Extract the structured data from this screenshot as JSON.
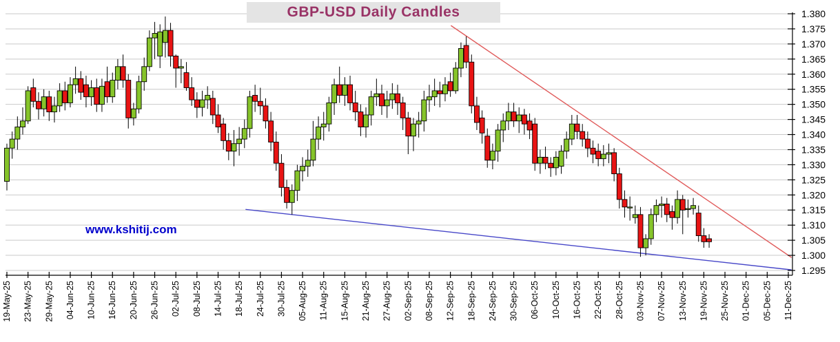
{
  "title": "GBP-USD Daily Candles",
  "watermark": "www.kshitij.com",
  "colors": {
    "up_candle": "#86c42a",
    "down_candle": "#e81414",
    "candle_border": "#000000",
    "wick": "#000000",
    "grid": "#c9c9c9",
    "axis": "#000000",
    "title_text": "#993366",
    "title_bg": "#e4e4e4",
    "watermark_text": "#0000cc",
    "resistance_line": "#e05a5a",
    "support_line": "#4646c8"
  },
  "chart_data": {
    "type": "candlestick",
    "title": "GBP-USD Daily Candles",
    "instrument": "GBP-USD",
    "timeframe": "Daily",
    "start_date": "19-May-25",
    "x_labels": [
      "19-May-25",
      "23-May-25",
      "29-May-25",
      "04-Jun-25",
      "10-Jun-25",
      "16-Jun-25",
      "20-Jun-25",
      "26-Jun-25",
      "02-Jul-25",
      "08-Jul-25",
      "14-Jul-25",
      "18-Jul-25",
      "24-Jul-25",
      "30-Jul-25",
      "05-Aug-25",
      "11-Aug-25",
      "15-Aug-25",
      "21-Aug-25",
      "27-Aug-25",
      "02-Sep-25",
      "08-Sep-25",
      "12-Sep-25",
      "18-Sep-25",
      "24-Sep-25",
      "30-Sep-25",
      "06-Oct-25",
      "10-Oct-25",
      "16-Oct-25",
      "22-Oct-25",
      "28-Oct-25",
      "03-Nov-25",
      "07-Nov-25",
      "13-Nov-25",
      "19-Nov-25",
      "25-Nov-25",
      "01-Dec-25",
      "05-Dec-25",
      "11-Dec-25"
    ],
    "label_interval": 4,
    "y_ticks": [
      1.38,
      1.375,
      1.37,
      1.365,
      1.36,
      1.355,
      1.35,
      1.345,
      1.34,
      1.335,
      1.33,
      1.325,
      1.32,
      1.315,
      1.31,
      1.305,
      1.3,
      1.295
    ],
    "ylim": [
      1.295,
      1.38
    ],
    "grid": true,
    "legend": false,
    "candles_ohlc": [
      [
        1.3245,
        1.337,
        1.3215,
        1.3355
      ],
      [
        1.3355,
        1.341,
        1.332,
        1.3385
      ],
      [
        1.3385,
        1.346,
        1.335,
        1.3425
      ],
      [
        1.3425,
        1.349,
        1.34,
        1.3445
      ],
      [
        1.3445,
        1.356,
        1.3435,
        1.3545
      ],
      [
        1.3555,
        1.3585,
        1.349,
        1.351
      ],
      [
        1.351,
        1.354,
        1.345,
        1.3485
      ],
      [
        1.3485,
        1.355,
        1.346,
        1.3525
      ],
      [
        1.3525,
        1.3545,
        1.3445,
        1.3475
      ],
      [
        1.3475,
        1.3525,
        1.344,
        1.3495
      ],
      [
        1.3495,
        1.357,
        1.3475,
        1.3545
      ],
      [
        1.3545,
        1.3575,
        1.348,
        1.3505
      ],
      [
        1.3505,
        1.359,
        1.349,
        1.3565
      ],
      [
        1.3565,
        1.3625,
        1.3535,
        1.3585
      ],
      [
        1.3585,
        1.361,
        1.3515,
        1.354
      ],
      [
        1.3565,
        1.3595,
        1.349,
        1.3525
      ],
      [
        1.3525,
        1.358,
        1.3495,
        1.3555
      ],
      [
        1.3555,
        1.3585,
        1.3475,
        1.35
      ],
      [
        1.35,
        1.3585,
        1.3475,
        1.356
      ],
      [
        1.3575,
        1.3625,
        1.3505,
        1.3525
      ],
      [
        1.3525,
        1.3605,
        1.3505,
        1.358
      ],
      [
        1.358,
        1.365,
        1.355,
        1.3625
      ],
      [
        1.3625,
        1.3665,
        1.3555,
        1.358
      ],
      [
        1.358,
        1.36,
        1.342,
        1.3455
      ],
      [
        1.3455,
        1.3505,
        1.343,
        1.3485
      ],
      [
        1.3485,
        1.3595,
        1.347,
        1.3575
      ],
      [
        1.3575,
        1.3655,
        1.3545,
        1.3625
      ],
      [
        1.3625,
        1.3745,
        1.361,
        1.372
      ],
      [
        1.372,
        1.3773,
        1.365,
        1.3735
      ],
      [
        1.366,
        1.3765,
        1.362,
        1.374
      ],
      [
        1.3705,
        1.3791,
        1.3655,
        1.3745
      ],
      [
        1.3745,
        1.377,
        1.3625,
        1.366
      ],
      [
        1.366,
        1.3665,
        1.3555,
        1.362
      ],
      [
        1.362,
        1.365,
        1.357,
        1.3625
      ],
      [
        1.3605,
        1.364,
        1.3545,
        1.3555
      ],
      [
        1.3555,
        1.359,
        1.3495,
        1.3515
      ],
      [
        1.3515,
        1.354,
        1.3455,
        1.349
      ],
      [
        1.349,
        1.3545,
        1.346,
        1.3515
      ],
      [
        1.3515,
        1.356,
        1.3485,
        1.353
      ],
      [
        1.352,
        1.3545,
        1.3435,
        1.3465
      ],
      [
        1.3465,
        1.35,
        1.3405,
        1.3425
      ],
      [
        1.3435,
        1.3455,
        1.335,
        1.338
      ],
      [
        1.338,
        1.3405,
        1.3315,
        1.3345
      ],
      [
        1.3345,
        1.3415,
        1.3295,
        1.337
      ],
      [
        1.337,
        1.3425,
        1.333,
        1.3385
      ],
      [
        1.3385,
        1.345,
        1.3355,
        1.342
      ],
      [
        1.342,
        1.3545,
        1.339,
        1.3525
      ],
      [
        1.353,
        1.3565,
        1.3475,
        1.351
      ],
      [
        1.351,
        1.3555,
        1.3465,
        1.3495
      ],
      [
        1.3495,
        1.352,
        1.342,
        1.3445
      ],
      [
        1.3445,
        1.3475,
        1.3345,
        1.3375
      ],
      [
        1.3375,
        1.341,
        1.328,
        1.3305
      ],
      [
        1.3305,
        1.3335,
        1.3195,
        1.3225
      ],
      [
        1.3225,
        1.325,
        1.3155,
        1.3175
      ],
      [
        1.3175,
        1.3235,
        1.3135,
        1.3215
      ],
      [
        1.3215,
        1.33,
        1.318,
        1.328
      ],
      [
        1.328,
        1.3325,
        1.3245,
        1.3295
      ],
      [
        1.3295,
        1.335,
        1.326,
        1.3315
      ],
      [
        1.3315,
        1.3445,
        1.3295,
        1.3385
      ],
      [
        1.3385,
        1.346,
        1.335,
        1.3425
      ],
      [
        1.3425,
        1.3475,
        1.338,
        1.3435
      ],
      [
        1.3435,
        1.3525,
        1.341,
        1.3505
      ],
      [
        1.3505,
        1.3585,
        1.3465,
        1.3565
      ],
      [
        1.3565,
        1.3625,
        1.3505,
        1.353
      ],
      [
        1.353,
        1.359,
        1.3495,
        1.3565
      ],
      [
        1.3565,
        1.3595,
        1.348,
        1.3505
      ],
      [
        1.3505,
        1.3545,
        1.3445,
        1.3475
      ],
      [
        1.3475,
        1.35,
        1.3395,
        1.3425
      ],
      [
        1.3425,
        1.349,
        1.339,
        1.3465
      ],
      [
        1.3465,
        1.3545,
        1.343,
        1.3525
      ],
      [
        1.3525,
        1.3585,
        1.3495,
        1.3535
      ],
      [
        1.3535,
        1.3565,
        1.3465,
        1.3495
      ],
      [
        1.3495,
        1.3545,
        1.3455,
        1.3515
      ],
      [
        1.3515,
        1.357,
        1.3485,
        1.3535
      ],
      [
        1.3535,
        1.3565,
        1.3465,
        1.3505
      ],
      [
        1.3505,
        1.3525,
        1.3415,
        1.3455
      ],
      [
        1.3455,
        1.3475,
        1.3335,
        1.3395
      ],
      [
        1.3395,
        1.3455,
        1.3345,
        1.3435
      ],
      [
        1.3435,
        1.3475,
        1.339,
        1.3445
      ],
      [
        1.3445,
        1.3545,
        1.341,
        1.3515
      ],
      [
        1.3515,
        1.3565,
        1.3475,
        1.3525
      ],
      [
        1.3525,
        1.3585,
        1.3495,
        1.3545
      ],
      [
        1.3545,
        1.3575,
        1.349,
        1.3535
      ],
      [
        1.3535,
        1.359,
        1.351,
        1.3565
      ],
      [
        1.3575,
        1.3605,
        1.3525,
        1.3545
      ],
      [
        1.3545,
        1.364,
        1.3535,
        1.362
      ],
      [
        1.362,
        1.3705,
        1.359,
        1.3685
      ],
      [
        1.3695,
        1.3725,
        1.362,
        1.364
      ],
      [
        1.364,
        1.3665,
        1.347,
        1.3495
      ],
      [
        1.3495,
        1.3525,
        1.3415,
        1.344
      ],
      [
        1.3455,
        1.348,
        1.337,
        1.3405
      ],
      [
        1.3395,
        1.342,
        1.329,
        1.3315
      ],
      [
        1.3315,
        1.337,
        1.3285,
        1.3345
      ],
      [
        1.3345,
        1.3435,
        1.331,
        1.3415
      ],
      [
        1.3415,
        1.347,
        1.3375,
        1.3445
      ],
      [
        1.3445,
        1.3505,
        1.3415,
        1.3475
      ],
      [
        1.3475,
        1.3505,
        1.3425,
        1.3445
      ],
      [
        1.3445,
        1.349,
        1.3405,
        1.3465
      ],
      [
        1.3465,
        1.3485,
        1.34,
        1.3435
      ],
      [
        1.3445,
        1.347,
        1.3385,
        1.3415
      ],
      [
        1.3435,
        1.3455,
        1.328,
        1.3305
      ],
      [
        1.3305,
        1.335,
        1.327,
        1.3325
      ],
      [
        1.3325,
        1.336,
        1.3285,
        1.3305
      ],
      [
        1.3305,
        1.3325,
        1.326,
        1.329
      ],
      [
        1.329,
        1.3345,
        1.3265,
        1.3325
      ],
      [
        1.3295,
        1.3365,
        1.327,
        1.3345
      ],
      [
        1.3345,
        1.341,
        1.332,
        1.3385
      ],
      [
        1.3385,
        1.3465,
        1.3365,
        1.3435
      ],
      [
        1.3435,
        1.3465,
        1.3385,
        1.341
      ],
      [
        1.341,
        1.3435,
        1.336,
        1.3385
      ],
      [
        1.3385,
        1.341,
        1.3325,
        1.3355
      ],
      [
        1.3355,
        1.338,
        1.3305,
        1.3335
      ],
      [
        1.3345,
        1.337,
        1.3295,
        1.332
      ],
      [
        1.332,
        1.3365,
        1.3295,
        1.3335
      ],
      [
        1.3335,
        1.337,
        1.3305,
        1.334
      ],
      [
        1.334,
        1.3355,
        1.3245,
        1.327
      ],
      [
        1.327,
        1.329,
        1.3155,
        1.3185
      ],
      [
        1.3185,
        1.3215,
        1.3125,
        1.316
      ],
      [
        1.316,
        1.3195,
        1.3115,
        1.316
      ],
      [
        1.3125,
        1.3165,
        1.3105,
        1.3135
      ],
      [
        1.3135,
        1.316,
        1.2995,
        1.3025
      ],
      [
        1.3025,
        1.307,
        1.3,
        1.3055
      ],
      [
        1.3055,
        1.3155,
        1.3035,
        1.3135
      ],
      [
        1.3135,
        1.3185,
        1.311,
        1.3165
      ],
      [
        1.3165,
        1.3195,
        1.3125,
        1.317
      ],
      [
        1.317,
        1.319,
        1.311,
        1.3135
      ],
      [
        1.3145,
        1.3165,
        1.3085,
        1.3125
      ],
      [
        1.3125,
        1.3215,
        1.3105,
        1.3185
      ],
      [
        1.3185,
        1.32,
        1.307,
        1.315
      ],
      [
        1.3155,
        1.3185,
        1.3125,
        1.3155
      ],
      [
        1.3155,
        1.319,
        1.3135,
        1.3165
      ],
      [
        1.314,
        1.3165,
        1.3045,
        1.3065
      ],
      [
        1.3065,
        1.309,
        1.3025,
        1.3045
      ],
      [
        1.3055,
        1.307,
        1.3025,
        1.3045
      ]
    ],
    "trendlines": [
      {
        "name": "descending-resistance",
        "color_key": "resistance_line",
        "from": {
          "index": 84.1,
          "price": 1.3761
        },
        "to": {
          "index": 148.6,
          "price": 1.2993
        }
      },
      {
        "name": "descending-support",
        "color_key": "support_line",
        "from": {
          "index": 45.2,
          "price": 1.3152
        },
        "to": {
          "index": 148.6,
          "price": 1.2952
        }
      }
    ]
  }
}
